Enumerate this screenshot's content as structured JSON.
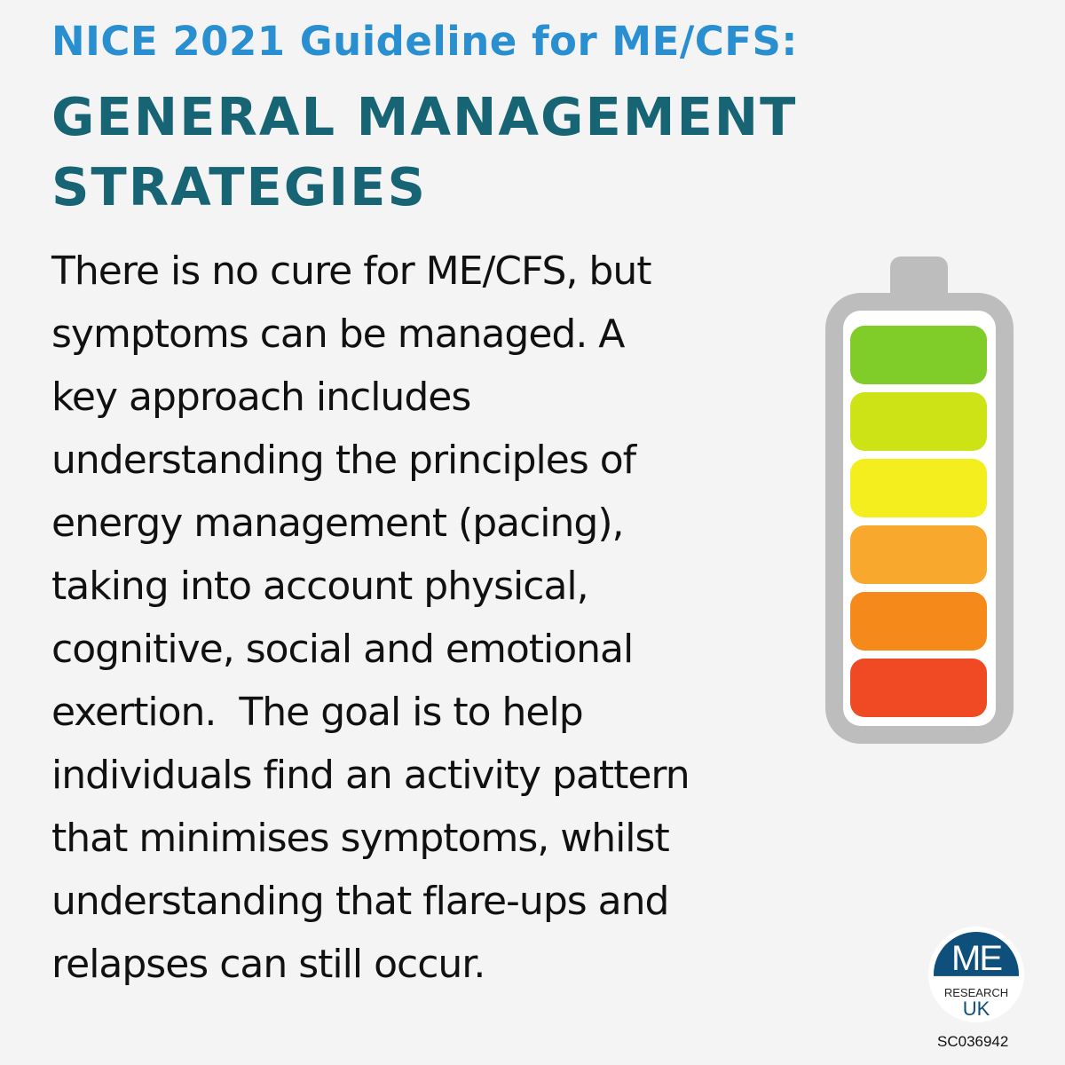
{
  "header": {
    "line1": "NICE 2021 Guideline for ME/CFS:",
    "line2": "GENERAL MANAGEMENT",
    "line3": "STRATEGIES"
  },
  "body_lines": [
    "There is no cure for ME/CFS, but",
    "symptoms can be managed. A",
    "key approach includes",
    "understanding the principles of",
    "energy management (pacing),",
    "taking into account physical,",
    "cognitive, social and emotional",
    "exertion.  The goal is to help",
    "individuals find an activity pattern",
    "that minimises symptoms, whilst",
    "understanding that flare-ups and",
    "relapses can still occur."
  ],
  "battery": {
    "icon": "battery-icon",
    "cell_colors": [
      "#80cc28",
      "#cde315",
      "#f5ee1f",
      "#f8a82d",
      "#f58a1a",
      "#f04a24"
    ],
    "frame_color": "#bdbdbd"
  },
  "logo": {
    "top": "ME",
    "middle": "RESEARCH",
    "bottom": "UK"
  },
  "charity_number": "SC036942",
  "colors": {
    "title_blue": "#2a8fd0",
    "title_teal": "#176474",
    "logo_blue": "#0e4f7c"
  }
}
